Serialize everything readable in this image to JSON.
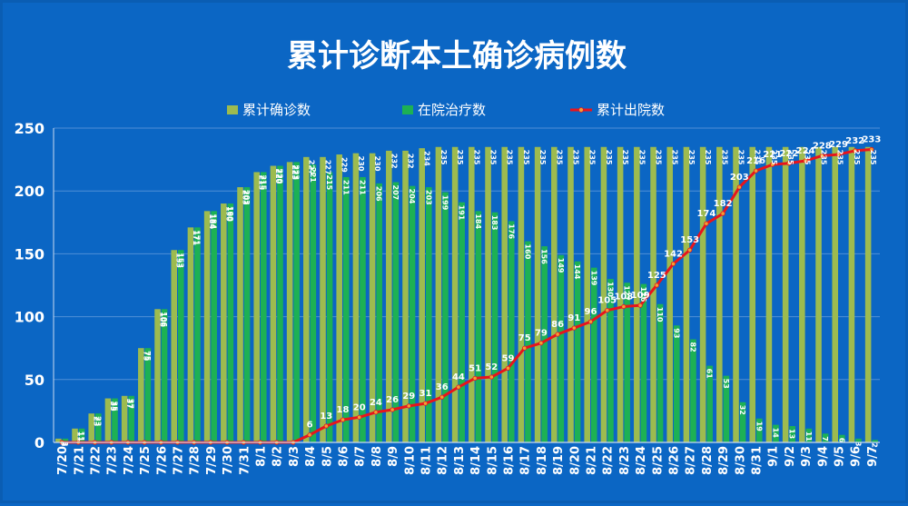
{
  "chart_data": {
    "type": "bar",
    "title": "累计诊断本土确诊病例数",
    "legend_position": "top",
    "ylim": [
      0,
      250
    ],
    "yticks": [
      0,
      50,
      100,
      150,
      200,
      250
    ],
    "grid": true,
    "categories": [
      "7/20",
      "7/21",
      "7/22",
      "7/23",
      "7/24",
      "7/25",
      "7/26",
      "7/27",
      "7/28",
      "7/29",
      "7/30",
      "7/31",
      "8/1",
      "8/2",
      "8/3",
      "8/4",
      "8/5",
      "8/6",
      "8/7",
      "8/8",
      "8/9",
      "8/10",
      "8/11",
      "8/12",
      "8/13",
      "8/14",
      "8/15",
      "8/16",
      "8/17",
      "8/18",
      "8/19",
      "8/20",
      "8/21",
      "8/22",
      "8/23",
      "8/24",
      "8/25",
      "8/26",
      "8/27",
      "8/28",
      "8/29",
      "8/30",
      "8/31",
      "9/1",
      "9/2",
      "9/3",
      "9/4",
      "9/5",
      "9/6",
      "9/7"
    ],
    "series": [
      {
        "name": "累计确诊数",
        "type": "bar",
        "color": "#9dbb4f",
        "values": [
          3,
          11,
          23,
          35,
          37,
          75,
          106,
          153,
          171,
          184,
          190,
          203,
          215,
          220,
          223,
          227,
          227,
          229,
          230,
          230,
          232,
          232,
          234,
          235,
          235,
          235,
          235,
          235,
          235,
          235,
          235,
          235,
          235,
          235,
          235,
          235,
          235,
          235,
          235,
          235,
          235,
          235,
          235,
          235,
          235,
          235,
          235,
          235,
          235,
          235
        ]
      },
      {
        "name": "在院治疗数",
        "type": "bar",
        "color": "#1db154",
        "values": [
          3,
          11,
          23,
          35,
          37,
          75,
          106,
          153,
          171,
          184,
          190,
          203,
          215,
          220,
          223,
          221,
          215,
          211,
          211,
          206,
          207,
          204,
          203,
          199,
          191,
          184,
          183,
          176,
          160,
          156,
          149,
          144,
          139,
          130,
          127,
          126,
          110,
          93,
          82,
          61,
          53,
          32,
          19,
          14,
          13,
          11,
          7,
          6,
          3,
          2
        ]
      },
      {
        "name": "累计出院数",
        "type": "line",
        "color": "#e8141c",
        "values": [
          0,
          0,
          0,
          0,
          0,
          0,
          0,
          0,
          0,
          0,
          0,
          0,
          0,
          0,
          0,
          6,
          13,
          18,
          20,
          24,
          26,
          29,
          31,
          36,
          44,
          51,
          52,
          59,
          75,
          79,
          86,
          91,
          96,
          105,
          108,
          109,
          125,
          142,
          153,
          174,
          182,
          203,
          216,
          221,
          222,
          224,
          228,
          229,
          232,
          233
        ]
      }
    ]
  }
}
